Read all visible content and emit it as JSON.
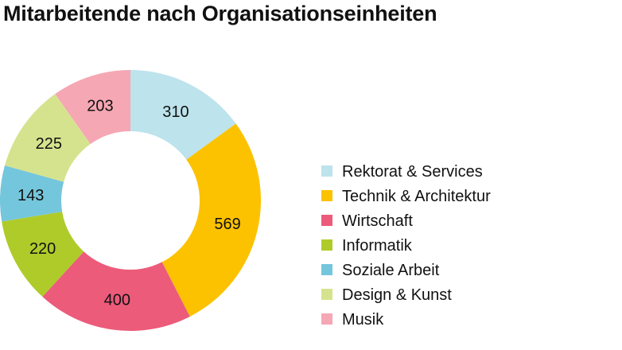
{
  "chart_data": {
    "type": "pie",
    "donut": true,
    "title": "Mitarbeitende nach Organisationseinheiten",
    "legend_position": "right",
    "categories": [
      "Rektorat & Services",
      "Technik & Architektur",
      "Wirtschaft",
      "Informatik",
      "Soziale Arbeit",
      "Design & Kunst",
      "Musik"
    ],
    "values": [
      310,
      569,
      400,
      220,
      143,
      225,
      203
    ],
    "colors": [
      "#bde3ec",
      "#fcc200",
      "#ec5b7a",
      "#afcb2a",
      "#74c6dc",
      "#d6e38e",
      "#f5a7b3"
    ]
  }
}
